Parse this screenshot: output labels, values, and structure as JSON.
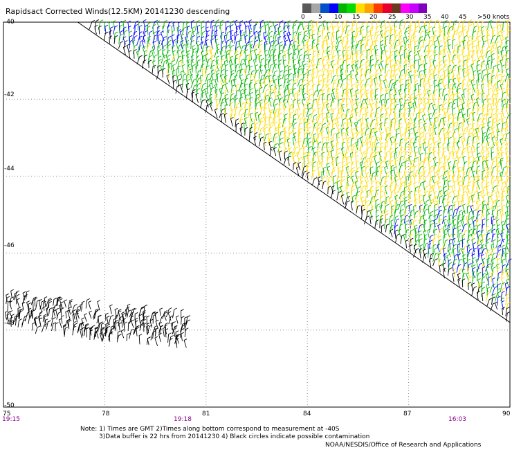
{
  "title": "Rapidsact Corrected Winds(12.5KM) 20141230 descending",
  "colorbar": {
    "colors": [
      "#595959",
      "#a6a6a6",
      "#0050c8",
      "#0000ff",
      "#00b400",
      "#00dc00",
      "#ffdc00",
      "#ffa500",
      "#ff3c00",
      "#e8002a",
      "#6b3a1e",
      "#ff00ff",
      "#c800ff",
      "#8000c0"
    ],
    "labels": [
      "0",
      "5",
      "10",
      "15",
      "20",
      "25",
      "30",
      "35",
      "40",
      "45",
      ">50 knots"
    ]
  },
  "axes": {
    "x_ticks": [
      "75",
      "78",
      "81",
      "84",
      "87",
      "90"
    ],
    "y_ticks": [
      "-40",
      "-42",
      "-44",
      "-46",
      "-48",
      "-50"
    ],
    "times": [
      "19:15",
      "19:18",
      "16:03"
    ]
  },
  "chart_data": {
    "type": "map",
    "x_range": [
      75,
      90
    ],
    "y_range": [
      -50,
      -40
    ],
    "grid": true,
    "swath_edge": [
      [
        77.2,
        -40.0
      ],
      [
        90.0,
        -47.8
      ]
    ],
    "wind_colors": {
      "green": "#00b400",
      "yellow": "#ffdc00",
      "blue": "#0000ff",
      "orange": "#ff8c00",
      "contaminated": "#000000"
    }
  },
  "notes": {
    "line1": "Note: 1) Times are GMT 2)Times along bottom correspond to measurement at -40S",
    "line2": "3)Data buffer is 22 hrs from 20141230 4) Black circles indicate possible contamination"
  },
  "credit": "NOAA/NESDIS/Office of Research and Applications"
}
